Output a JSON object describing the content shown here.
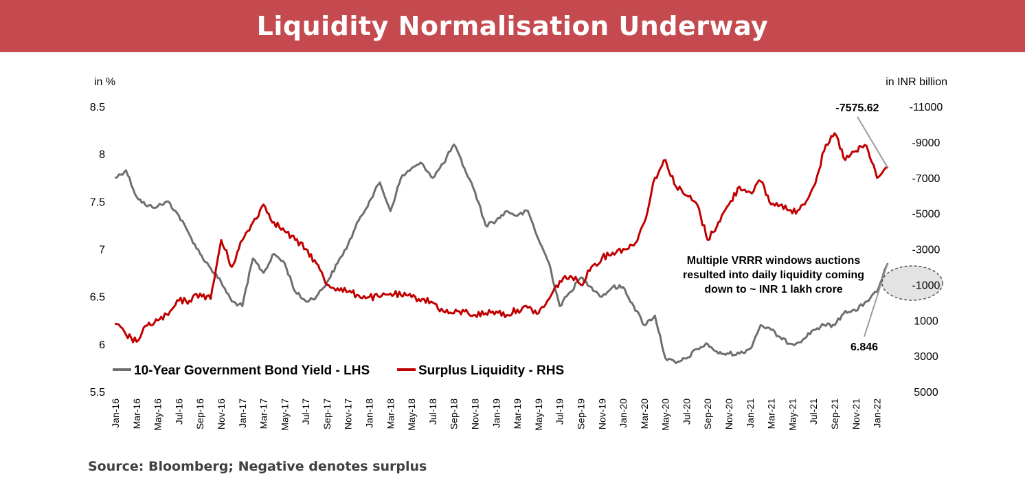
{
  "title": "Liquidity Normalisation Underway",
  "source": "Source: Bloomberg; Negative denotes surplus",
  "chart_data": {
    "type": "line",
    "title": "Liquidity Normalisation Underway",
    "left_axis": {
      "unit_label": "in %",
      "range": [
        5.5,
        8.5
      ],
      "ticks": [
        "5.5",
        "6",
        "6.5",
        "7",
        "7.5",
        "8",
        "8.5"
      ],
      "tick_values": [
        5.5,
        6,
        6.5,
        7,
        7.5,
        8,
        8.5
      ]
    },
    "right_axis": {
      "unit_label": "in INR billion",
      "range": [
        5000,
        -11000
      ],
      "reversed": true,
      "ticks": [
        "5000",
        "3000",
        "1000",
        "-1000",
        "-3000",
        "-5000",
        "-7000",
        "-9000",
        "-11000"
      ],
      "tick_values": [
        5000,
        3000,
        1000,
        -1000,
        -3000,
        -5000,
        -7000,
        -9000,
        -11000
      ]
    },
    "x_ticks": [
      "Jan-16",
      "Mar-16",
      "May-16",
      "Jul-16",
      "Sep-16",
      "Nov-16",
      "Jan-17",
      "Mar-17",
      "May-17",
      "Jul-17",
      "Sep-17",
      "Nov-17",
      "Jan-18",
      "Mar-18",
      "May-18",
      "Jul-18",
      "Sep-18",
      "Nov-18",
      "Jan-19",
      "Mar-19",
      "May-19",
      "Jul-19",
      "Sep-19",
      "Nov-19",
      "Jan-20",
      "Mar-20",
      "May-20",
      "Jul-20",
      "Sep-20",
      "Nov-20",
      "Jan-21",
      "Mar-21",
      "May-21",
      "Jul-21",
      "Sep-21",
      "Nov-21",
      "Jan-22"
    ],
    "legend_position": "bottom-left",
    "grid": false,
    "series": [
      {
        "name": "10-Year Government Bond Yield - LHS",
        "axis": "left",
        "color": "#6e6e6e",
        "points": [
          [
            "Jan-16",
            7.75
          ],
          [
            "Feb-16",
            7.83
          ],
          [
            "Mar-16",
            7.55
          ],
          [
            "Apr-16",
            7.45
          ],
          [
            "May-16",
            7.45
          ],
          [
            "Jun-16",
            7.5
          ],
          [
            "Jul-16",
            7.35
          ],
          [
            "Aug-16",
            7.15
          ],
          [
            "Sep-16",
            6.95
          ],
          [
            "Oct-16",
            6.8
          ],
          [
            "Nov-16",
            6.65
          ],
          [
            "Dec-16",
            6.45
          ],
          [
            "Jan-17",
            6.4
          ],
          [
            "Feb-17",
            6.9
          ],
          [
            "Mar-17",
            6.75
          ],
          [
            "Apr-17",
            6.95
          ],
          [
            "May-17",
            6.85
          ],
          [
            "Jun-17",
            6.55
          ],
          [
            "Jul-17",
            6.45
          ],
          [
            "Aug-17",
            6.5
          ],
          [
            "Sep-17",
            6.65
          ],
          [
            "Oct-17",
            6.85
          ],
          [
            "Nov-17",
            7.05
          ],
          [
            "Dec-17",
            7.3
          ],
          [
            "Jan-18",
            7.5
          ],
          [
            "Feb-18",
            7.7
          ],
          [
            "Mar-18",
            7.4
          ],
          [
            "Apr-18",
            7.75
          ],
          [
            "May-18",
            7.85
          ],
          [
            "Jun-18",
            7.9
          ],
          [
            "Jul-18",
            7.75
          ],
          [
            "Aug-18",
            7.9
          ],
          [
            "Sep-18",
            8.1
          ],
          [
            "Oct-18",
            7.85
          ],
          [
            "Nov-18",
            7.6
          ],
          [
            "Dec-18",
            7.25
          ],
          [
            "Jan-19",
            7.3
          ],
          [
            "Feb-19",
            7.4
          ],
          [
            "Mar-19",
            7.35
          ],
          [
            "Apr-19",
            7.4
          ],
          [
            "May-19",
            7.1
          ],
          [
            "Jun-19",
            6.85
          ],
          [
            "Jul-19",
            6.4
          ],
          [
            "Aug-19",
            6.55
          ],
          [
            "Sep-19",
            6.7
          ],
          [
            "Oct-19",
            6.6
          ],
          [
            "Nov-19",
            6.5
          ],
          [
            "Dec-19",
            6.6
          ],
          [
            "Jan-20",
            6.6
          ],
          [
            "Feb-20",
            6.4
          ],
          [
            "Mar-20",
            6.2
          ],
          [
            "Apr-20",
            6.3
          ],
          [
            "May-20",
            5.85
          ],
          [
            "Jun-20",
            5.8
          ],
          [
            "Jul-20",
            5.85
          ],
          [
            "Aug-20",
            5.95
          ],
          [
            "Sep-20",
            6.0
          ],
          [
            "Oct-20",
            5.9
          ],
          [
            "Nov-20",
            5.9
          ],
          [
            "Dec-20",
            5.9
          ],
          [
            "Jan-21",
            5.95
          ],
          [
            "Feb-21",
            6.2
          ],
          [
            "Mar-21",
            6.15
          ],
          [
            "Apr-21",
            6.05
          ],
          [
            "May-21",
            6.0
          ],
          [
            "Jun-21",
            6.05
          ],
          [
            "Jul-21",
            6.15
          ],
          [
            "Aug-21",
            6.2
          ],
          [
            "Sep-21",
            6.2
          ],
          [
            "Oct-21",
            6.35
          ],
          [
            "Nov-21",
            6.35
          ],
          [
            "Dec-21",
            6.45
          ],
          [
            "Jan-22",
            6.55
          ],
          [
            "Feb-22",
            6.846
          ]
        ]
      },
      {
        "name": "Surplus Liquidity - RHS",
        "axis": "right",
        "color": "#c00000",
        "points": [
          [
            "Jan-16",
            1200
          ],
          [
            "Feb-16",
            1800
          ],
          [
            "Mar-16",
            2200
          ],
          [
            "Apr-16",
            1300
          ],
          [
            "May-16",
            1000
          ],
          [
            "Jun-16",
            700
          ],
          [
            "Jul-16",
            -100
          ],
          [
            "Aug-16",
            -100
          ],
          [
            "Sep-16",
            -500
          ],
          [
            "Oct-16",
            -200
          ],
          [
            "Nov-16",
            -3500
          ],
          [
            "Dec-16",
            -2000
          ],
          [
            "Jan-17",
            -3500
          ],
          [
            "Feb-17",
            -4500
          ],
          [
            "Mar-17",
            -5500
          ],
          [
            "Apr-17",
            -4500
          ],
          [
            "May-17",
            -4000
          ],
          [
            "Jun-17",
            -3500
          ],
          [
            "Jul-17",
            -3000
          ],
          [
            "Aug-17",
            -2200
          ],
          [
            "Sep-17",
            -1000
          ],
          [
            "Oct-17",
            -800
          ],
          [
            "Nov-17",
            -600
          ],
          [
            "Dec-17",
            -400
          ],
          [
            "Jan-18",
            -300
          ],
          [
            "Feb-18",
            -300
          ],
          [
            "Mar-18",
            -500
          ],
          [
            "Apr-18",
            -400
          ],
          [
            "May-18",
            -300
          ],
          [
            "Jun-18",
            -200
          ],
          [
            "Jul-18",
            0
          ],
          [
            "Aug-18",
            500
          ],
          [
            "Sep-18",
            600
          ],
          [
            "Oct-18",
            500
          ],
          [
            "Nov-18",
            700
          ],
          [
            "Dec-18",
            600
          ],
          [
            "Jan-19",
            500
          ],
          [
            "Feb-19",
            700
          ],
          [
            "Mar-19",
            400
          ],
          [
            "Apr-19",
            300
          ],
          [
            "May-19",
            600
          ],
          [
            "Jun-19",
            -200
          ],
          [
            "Jul-19",
            -1200
          ],
          [
            "Aug-19",
            -1500
          ],
          [
            "Sep-19",
            -1000
          ],
          [
            "Oct-19",
            -2000
          ],
          [
            "Nov-19",
            -2500
          ],
          [
            "Dec-19",
            -2800
          ],
          [
            "Jan-20",
            -3000
          ],
          [
            "Feb-20",
            -3200
          ],
          [
            "Mar-20",
            -4500
          ],
          [
            "Apr-20",
            -7000
          ],
          [
            "May-20",
            -8000
          ],
          [
            "Jun-20",
            -6500
          ],
          [
            "Jul-20",
            -6000
          ],
          [
            "Aug-20",
            -5500
          ],
          [
            "Sep-20",
            -3500
          ],
          [
            "Oct-20",
            -4500
          ],
          [
            "Nov-20",
            -5500
          ],
          [
            "Dec-20",
            -6500
          ],
          [
            "Jan-21",
            -6200
          ],
          [
            "Feb-21",
            -6800
          ],
          [
            "Mar-21",
            -5500
          ],
          [
            "Apr-21",
            -5500
          ],
          [
            "May-21",
            -5000
          ],
          [
            "Jun-21",
            -5500
          ],
          [
            "Jul-21",
            -6500
          ],
          [
            "Aug-21",
            -8500
          ],
          [
            "Sep-21",
            -9500
          ],
          [
            "Oct-21",
            -8000
          ],
          [
            "Nov-21",
            -8500
          ],
          [
            "Dec-21",
            -8800
          ],
          [
            "Jan-22",
            -7000
          ],
          [
            "Feb-22",
            -7575.62
          ]
        ]
      }
    ],
    "annotations": {
      "liquidity_end_label": "-7575.62",
      "yield_end_label": "6.846",
      "note_lines": [
        "Multiple VRRR windows auctions",
        "resulted into daily liquidity coming",
        "down to ~ INR 1 lakh crore"
      ]
    }
  }
}
